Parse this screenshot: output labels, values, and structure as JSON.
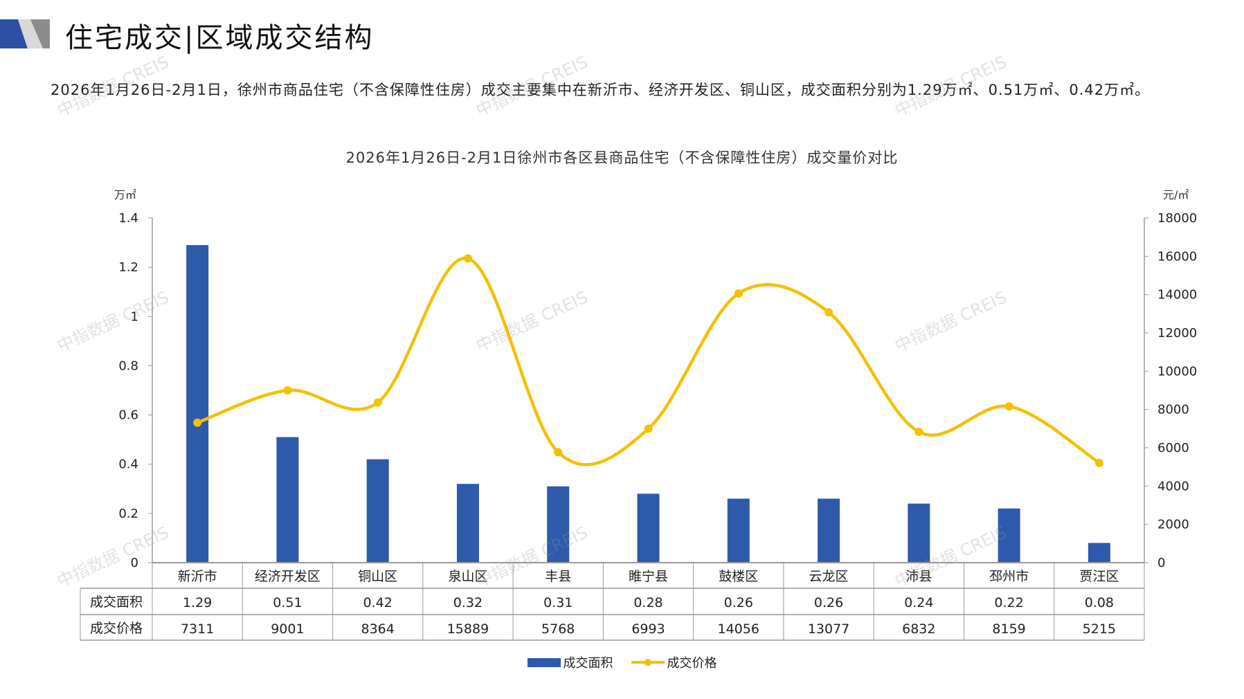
{
  "header": {
    "title": "住宅成交|区域成交结构"
  },
  "summary": "2026年1月26日-2月1日，徐州市商品住宅（不含保障性住房）成交主要集中在新沂市、经济开发区、铜山区，成交面积分别为1.29万㎡、0.51万㎡、0.42万㎡。",
  "watermark": "中指数据 CREIS",
  "chart_data": {
    "type": "bar+line",
    "title": "2026年1月26日-2月1日徐州市各区县商品住宅（不含保障性住房）成交量价对比",
    "categories": [
      "新沂市",
      "经济开发区",
      "铜山区",
      "泉山区",
      "丰县",
      "睢宁县",
      "鼓楼区",
      "云龙区",
      "沛县",
      "邳州市",
      "贾汪区"
    ],
    "series": [
      {
        "name": "成交面积",
        "type": "bar",
        "axis": "left",
        "color": "#2E5AAC",
        "values": [
          1.29,
          0.51,
          0.42,
          0.32,
          0.31,
          0.28,
          0.26,
          0.26,
          0.24,
          0.22,
          0.08
        ],
        "labels": [
          "1.29",
          "0.51",
          "0.42",
          "0.32",
          "0.31",
          "0.28",
          "0.26",
          "0.26",
          "0.24",
          "0.22",
          "0.08"
        ]
      },
      {
        "name": "成交价格",
        "type": "line",
        "axis": "right",
        "color": "#F5C000",
        "values": [
          7311,
          9001,
          8364,
          15889,
          5768,
          6993,
          14056,
          13077,
          6832,
          8159,
          5215
        ]
      }
    ],
    "left_axis": {
      "unit": "万㎡",
      "ylim": [
        0,
        1.4
      ],
      "ticks": [
        "0",
        "0.2",
        "0.4",
        "0.6",
        "0.8",
        "1",
        "1.2",
        "1.4"
      ]
    },
    "right_axis": {
      "unit": "元/㎡",
      "ylim": [
        0,
        18000
      ],
      "ticks": [
        "0",
        "2000",
        "4000",
        "6000",
        "8000",
        "10000",
        "12000",
        "14000",
        "16000",
        "18000"
      ]
    },
    "legend": "bottom",
    "table_rows": [
      "成交面积",
      "成交价格"
    ]
  }
}
